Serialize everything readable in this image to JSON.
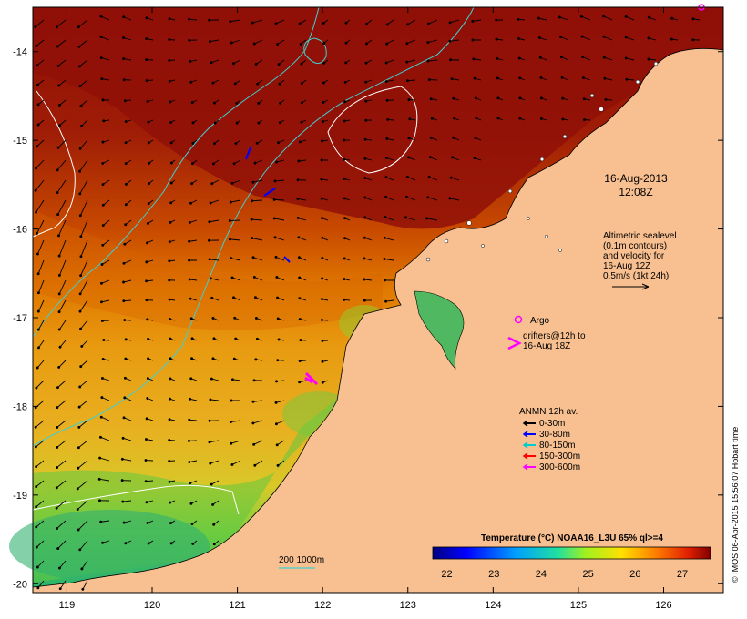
{
  "title": {
    "date": "16-Aug-2013",
    "time": "12:08Z"
  },
  "altimetry_note": {
    "lines": [
      "Altimetric sealevel",
      "(0.1m contours)",
      "and velocity for",
      "16-Aug 12Z",
      "0.5m/s (1kt 24h)"
    ]
  },
  "argo": {
    "label": "Argo",
    "color": "#ff00ff"
  },
  "drifters": {
    "lines": [
      "drifters@12h to",
      "16-Aug 18Z"
    ],
    "color": "#ff00ff"
  },
  "anmn": {
    "title": "ANMN 12h av.",
    "items": [
      {
        "label": "0-30m",
        "color": "#000000"
      },
      {
        "label": "30-80m",
        "color": "#0000ff"
      },
      {
        "label": "80-150m",
        "color": "#00cccc"
      },
      {
        "label": "150-300m",
        "color": "#ff0000"
      },
      {
        "label": "300-600m",
        "color": "#ff00ff"
      }
    ]
  },
  "isobath_label": "200  1000m",
  "colorbar": {
    "title": "Temperature (°C) NOAA16_L3U 65% ql>=4",
    "ticks": [
      "22",
      "23",
      "24",
      "25",
      "26",
      "27"
    ],
    "range": [
      21.7,
      27.6
    ]
  },
  "credit": "© IMOS 06-Apr-2015 15:56:07 Hobart time",
  "axes": {
    "lon_ticks": [
      "119",
      "120",
      "121",
      "122",
      "123",
      "124",
      "125",
      "126"
    ],
    "lat_ticks": [
      "-14",
      "-15",
      "-16",
      "-17",
      "-18",
      "-19",
      "-20"
    ],
    "lon_range": [
      118.6,
      126.7
    ],
    "lat_range": [
      -13.5,
      -20.1
    ]
  }
}
